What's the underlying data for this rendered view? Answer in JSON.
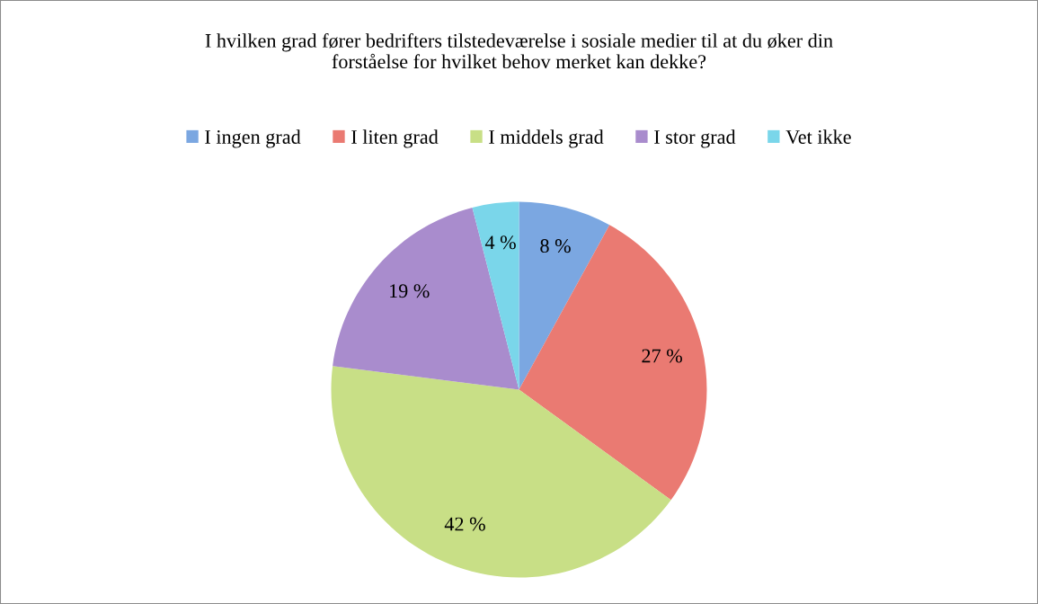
{
  "chart_data": {
    "type": "pie",
    "title": "I hvilken grad fører bedrifters tilstedeværelse i sosiale medier til at du øker din\nforståelse for hvilket behov merket kan dekke?",
    "categories": [
      "I ingen grad",
      "I liten grad",
      "I middels grad",
      "I stor grad",
      "Vet ikke"
    ],
    "values": [
      8,
      27,
      42,
      19,
      4
    ],
    "colors": [
      "#7ba7e1",
      "#ea7a72",
      "#c8df86",
      "#a98ccd",
      "#7ad6ea"
    ],
    "value_labels": [
      "8 %",
      "27 %",
      "42 %",
      "19 %",
      "4 %"
    ],
    "legend": "top"
  }
}
